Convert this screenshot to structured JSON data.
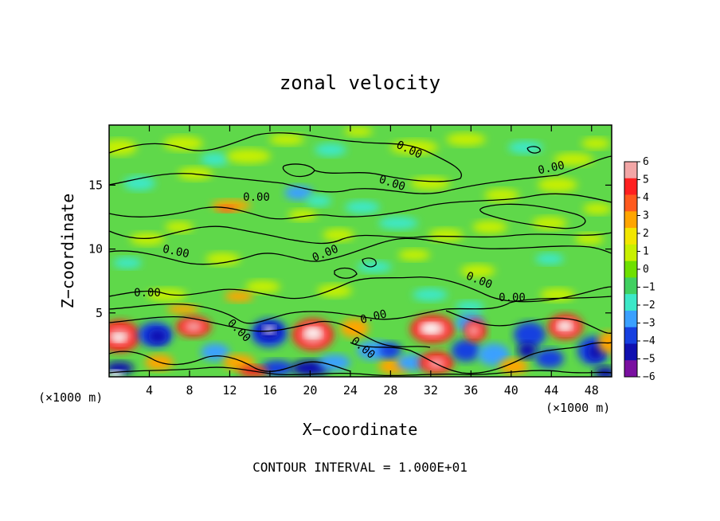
{
  "chart_data": {
    "type": "heatmap",
    "title": "zonal velocity",
    "xlabel": "X−coordinate",
    "ylabel": "Z−coordinate",
    "x_unit": "(×1000 m)",
    "x_unit_right": "(×1000 m)",
    "x_ticks": [
      "4",
      "8",
      "12",
      "16",
      "20",
      "24",
      "28",
      "32",
      "36",
      "40",
      "44",
      "48"
    ],
    "y_ticks": [
      "5",
      "10",
      "15"
    ],
    "xlim": [
      0,
      50
    ],
    "ylim": [
      0,
      19.7
    ],
    "colorbar": {
      "ticks": [
        "6",
        "5",
        "4",
        "3",
        "2",
        "1",
        "0",
        "−1",
        "−2",
        "−3",
        "−4",
        "−5",
        "−6"
      ],
      "range": [
        -6,
        6
      ],
      "colors": [
        "#f2a6a6",
        "#ff2020",
        "#ff5a1e",
        "#ffa500",
        "#f2e600",
        "#c8f000",
        "#6ee000",
        "#40d060",
        "#3ce8c8",
        "#3aa0ff",
        "#1640e0",
        "#1010b0",
        "#7a10a0"
      ]
    },
    "contour_label": "0.00",
    "contour_interval_text": "CONTOUR INTERVAL = 1.000E+01",
    "notes": "Field near zero (green) above Z~5; strong alternating positive (red/white) and negative (blue/white) cells along the lower boundary Z<5."
  }
}
